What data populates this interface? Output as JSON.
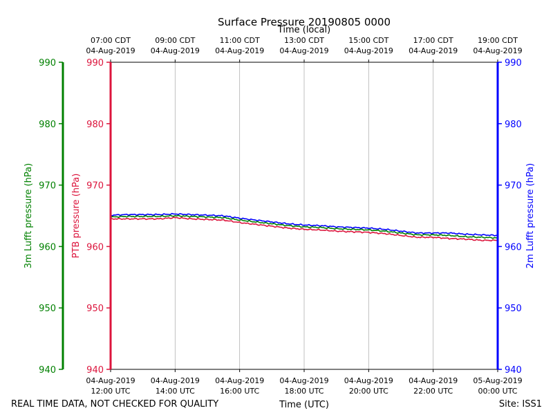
{
  "chart_data": {
    "type": "line",
    "title": "Surface Pressure 20190805 0000",
    "top_xlabel": "Time (local)",
    "xlabel": "Time (UTC)",
    "footer_left": "REAL TIME DATA, NOT CHECKED FOR QUALITY",
    "footer_right": "Site: ISS1",
    "x_range_utc_hours": [
      11,
      23
    ],
    "bottom_ticks": [
      {
        "h": 11,
        "line1": "04-Aug-2019",
        "line2": "12:00 UTC"
      },
      {
        "h": 13,
        "line1": "04-Aug-2019",
        "line2": "14:00 UTC"
      },
      {
        "h": 15,
        "line1": "04-Aug-2019",
        "line2": "16:00 UTC"
      },
      {
        "h": 17,
        "line1": "04-Aug-2019",
        "line2": "18:00 UTC"
      },
      {
        "h": 19,
        "line1": "04-Aug-2019",
        "line2": "20:00 UTC"
      },
      {
        "h": 21,
        "line1": "04-Aug-2019",
        "line2": "22:00 UTC"
      },
      {
        "h": 23,
        "line1": "05-Aug-2019",
        "line2": "00:00 UTC"
      }
    ],
    "top_ticks": [
      {
        "h": 11,
        "line1": "07:00 CDT",
        "line2": "04-Aug-2019"
      },
      {
        "h": 13,
        "line1": "09:00 CDT",
        "line2": "04-Aug-2019"
      },
      {
        "h": 15,
        "line1": "11:00 CDT",
        "line2": "04-Aug-2019"
      },
      {
        "h": 17,
        "line1": "13:00 CDT",
        "line2": "04-Aug-2019"
      },
      {
        "h": 19,
        "line1": "15:00 CDT",
        "line2": "04-Aug-2019"
      },
      {
        "h": 21,
        "line1": "17:00 CDT",
        "line2": "04-Aug-2019"
      },
      {
        "h": 23,
        "line1": "19:00 CDT",
        "line2": "04-Aug-2019"
      }
    ],
    "ylim": [
      940,
      990
    ],
    "yticks": [
      940,
      950,
      960,
      970,
      980,
      990
    ],
    "axes": [
      {
        "id": "lufft3m",
        "label": "3m Lufft pressure (hPa)",
        "color": "#008000",
        "side": "far-left"
      },
      {
        "id": "ptb",
        "label": "PTB pressure (hPa)",
        "color": "#dc143c",
        "side": "left"
      },
      {
        "id": "lufft2m",
        "label": "2m Lufft pressure (hPa)",
        "color": "#0000ff",
        "side": "right"
      }
    ],
    "grid": "vertical",
    "series": [
      {
        "name": "2m Lufft pressure",
        "color": "#0000ff",
        "x": [
          11,
          11.5,
          12,
          12.5,
          13,
          13.5,
          14,
          14.5,
          15,
          15.5,
          16,
          16.5,
          17,
          17.5,
          18,
          18.5,
          19,
          19.5,
          20,
          20.5,
          21,
          21.5,
          22,
          22.5,
          23
        ],
        "values": [
          965.1,
          965.2,
          965.2,
          965.2,
          965.3,
          965.2,
          965.1,
          965.0,
          964.6,
          964.3,
          964.0,
          963.7,
          963.5,
          963.4,
          963.2,
          963.1,
          963.0,
          962.8,
          962.5,
          962.2,
          962.2,
          962.2,
          962.0,
          961.9,
          961.8
        ]
      },
      {
        "name": "3m Lufft pressure",
        "color": "#008000",
        "x": [
          11,
          11.5,
          12,
          12.5,
          13,
          13.5,
          14,
          14.5,
          15,
          15.5,
          16,
          16.5,
          17,
          17.5,
          18,
          18.5,
          19,
          19.5,
          20,
          20.5,
          21,
          21.5,
          22,
          22.5,
          23
        ],
        "values": [
          964.8,
          964.9,
          964.9,
          964.9,
          965.0,
          964.9,
          964.8,
          964.7,
          964.3,
          964.0,
          963.7,
          963.4,
          963.2,
          963.1,
          962.9,
          962.8,
          962.7,
          962.5,
          962.2,
          961.9,
          961.9,
          961.8,
          961.6,
          961.5,
          961.4
        ]
      },
      {
        "name": "PTB pressure",
        "color": "#dc143c",
        "x": [
          11,
          11.5,
          12,
          12.5,
          13,
          13.5,
          14,
          14.5,
          15,
          15.5,
          16,
          16.5,
          17,
          17.5,
          18,
          18.5,
          19,
          19.5,
          20,
          20.5,
          21,
          21.5,
          22,
          22.5,
          23
        ],
        "values": [
          964.5,
          964.5,
          964.5,
          964.5,
          964.7,
          964.5,
          964.4,
          964.3,
          963.9,
          963.6,
          963.3,
          963.0,
          962.8,
          962.7,
          962.5,
          962.4,
          962.3,
          962.1,
          961.8,
          961.5,
          961.5,
          961.3,
          961.2,
          961.0,
          961.0
        ]
      }
    ]
  }
}
